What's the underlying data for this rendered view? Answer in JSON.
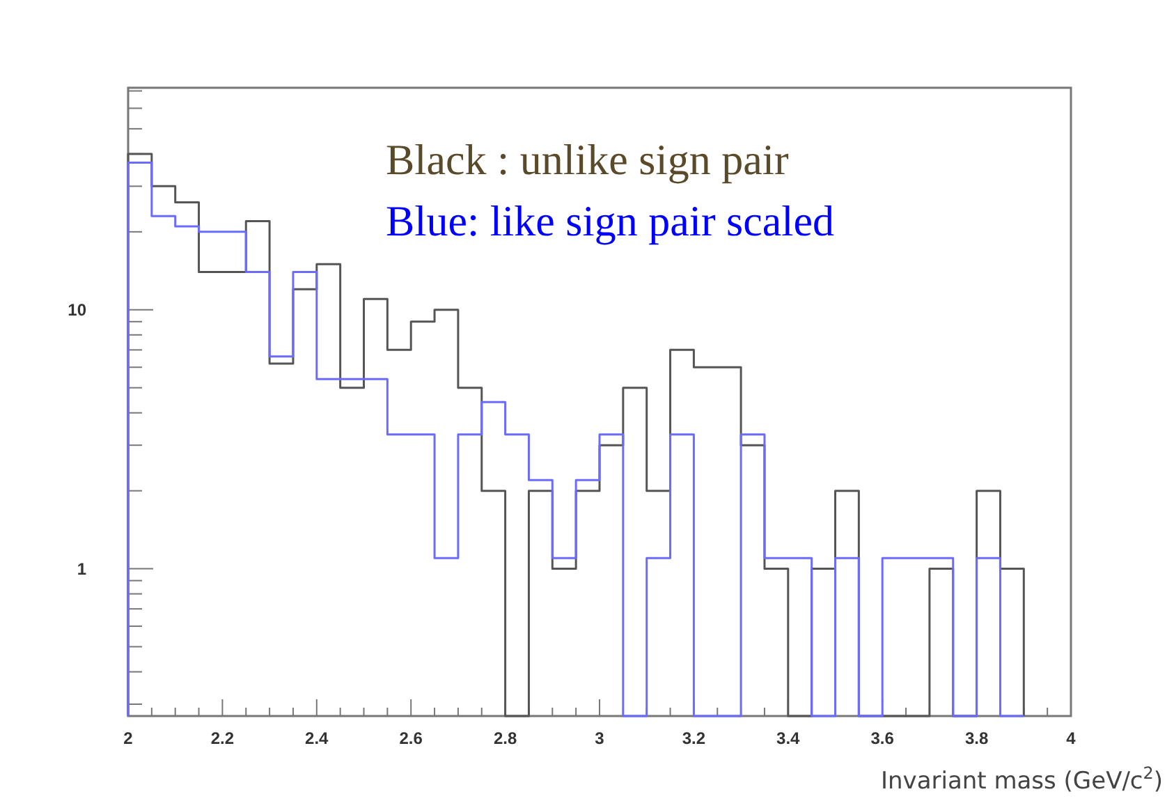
{
  "chart_data": {
    "type": "histogram",
    "xlabel": "Invariant mass (GeV/c$^{2}$)",
    "bins": [
      2,
      2.05,
      2.1,
      2.15,
      2.2,
      2.25,
      2.3,
      2.35,
      2.4,
      2.45,
      2.5,
      2.55,
      2.6,
      2.65,
      2.7,
      2.75,
      2.8,
      2.85,
      2.9,
      2.95,
      3,
      3.05,
      3.1,
      3.15,
      3.2,
      3.25,
      3.3,
      3.35,
      3.4,
      3.45,
      3.5,
      3.55,
      3.6,
      3.65,
      3.7,
      3.75,
      3.8,
      3.85,
      3.9
    ],
    "series": [
      {
        "color": "#555555",
        "values": [
          40,
          30,
          26,
          14,
          14,
          22,
          6.2,
          12,
          15,
          5,
          11,
          7,
          9,
          10,
          5,
          2,
          null,
          2,
          1,
          2,
          3,
          5,
          2,
          7,
          6,
          6,
          3,
          1,
          null,
          1,
          2,
          null,
          null,
          null,
          1,
          null,
          2,
          1
        ]
      },
      {
        "color": "#6b6bff",
        "values": [
          37,
          23,
          21,
          20,
          20,
          14,
          6.6,
          14,
          5.4,
          5.4,
          5.4,
          3.3,
          3.3,
          1.1,
          3.3,
          4.4,
          3.3,
          2.2,
          1.1,
          2.2,
          3.3,
          null,
          1.1,
          3.3,
          null,
          null,
          3.3,
          1.1,
          1.1,
          null,
          1.1,
          null,
          1.1,
          1.1,
          1.1,
          null,
          1.1,
          null
        ]
      }
    ],
    "annotations": [
      "Black : unlike sign pair",
      "Blue: like sign pair scaled"
    ],
    "log": "y",
    "grid": false,
    "xlim": [
      2,
      4
    ],
    "xticks": [
      2,
      {
        "value": 2.05,
        "label": null
      },
      {
        "value": 2.1,
        "label": null
      },
      {
        "value": 2.15,
        "label": null
      },
      2.2,
      {
        "value": 2.25,
        "label": null
      },
      {
        "value": 2.3,
        "label": null
      },
      {
        "value": 2.35,
        "label": null
      },
      2.4,
      {
        "value": 2.45,
        "label": null
      },
      {
        "value": 2.5,
        "label": null
      },
      {
        "value": 2.55,
        "label": null
      },
      2.6,
      {
        "value": 2.65,
        "label": null
      },
      {
        "value": 2.7,
        "label": null
      },
      {
        "value": 2.75,
        "label": null
      },
      2.8,
      {
        "value": 2.85,
        "label": null
      },
      {
        "value": 2.9,
        "label": null
      },
      {
        "value": 2.95,
        "label": null
      },
      3,
      {
        "value": 3.05,
        "label": null
      },
      {
        "value": 3.1,
        "label": null
      },
      {
        "value": 3.15,
        "label": null
      },
      3.2,
      {
        "value": 3.25,
        "label": null
      },
      {
        "value": 3.3,
        "label": null
      },
      {
        "value": 3.35,
        "label": null
      },
      3.4,
      {
        "value": 3.45,
        "label": null
      },
      {
        "value": 3.5,
        "label": null
      },
      {
        "value": 3.55,
        "label": null
      },
      3.6,
      {
        "value": 3.65,
        "label": null
      },
      {
        "value": 3.7,
        "label": null
      },
      {
        "value": 3.75,
        "label": null
      },
      3.8,
      {
        "value": 3.85,
        "label": null
      },
      {
        "value": 3.9,
        "label": null
      },
      {
        "value": 3.95,
        "label": null
      },
      4
    ],
    "ylim": [
      0.27,
      72
    ],
    "yticks": [
      {
        "value": 0.3,
        "label": null
      },
      {
        "value": 0.4,
        "label": null
      },
      {
        "value": 0.5,
        "label": null
      },
      {
        "value": 0.6,
        "label": null
      },
      {
        "value": 0.7,
        "label": null
      },
      {
        "value": 0.8,
        "label": null
      },
      {
        "value": 0.9,
        "label": null
      },
      1,
      {
        "value": 2,
        "label": null
      },
      {
        "value": 3,
        "label": null
      },
      {
        "value": 4,
        "label": null
      },
      {
        "value": 5,
        "label": null
      },
      {
        "value": 6,
        "label": null
      },
      {
        "value": 7,
        "label": null
      },
      {
        "value": 8,
        "label": null
      },
      {
        "value": 9,
        "label": null
      },
      10,
      {
        "value": 20,
        "label": null
      },
      {
        "value": 30,
        "label": null
      },
      {
        "value": 40,
        "label": null
      },
      {
        "value": 50,
        "label": null
      },
      {
        "value": 60,
        "label": null
      },
      {
        "value": 70,
        "label": null
      }
    ]
  }
}
